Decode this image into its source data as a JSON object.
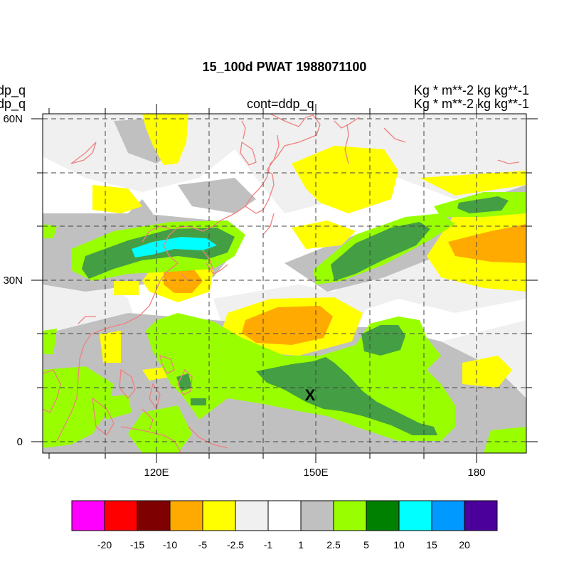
{
  "title": "15_100d PWAT  1988071100",
  "left_labels": [
    "ddp_q",
    "ddp_q"
  ],
  "center_label": "cont=ddp_q",
  "right_labels": [
    "Kg  * m**-2 kg kg**-1",
    "Kg  * m**-2 kg kg**-1"
  ],
  "y_axis_labels": [
    "60N",
    "30N",
    "0"
  ],
  "x_axis_labels": [
    "120E",
    "150E",
    "180"
  ],
  "marker": "X",
  "colorbar": {
    "labels": [
      "-20",
      "-15",
      "-10",
      "-5",
      "-2.5",
      "-1",
      "1",
      "2.5",
      "5",
      "10",
      "15",
      "20"
    ],
    "colors": [
      "#ff00ff",
      "#ff0000",
      "#7f0000",
      "#ffaa00",
      "#ffff00",
      "#f0f0f0",
      "#ffffff",
      "#c0c0c0",
      "#99ff00",
      "#008000",
      "#00ffff",
      "#0099ff",
      "#4b009b"
    ]
  },
  "field_colors": {
    "neg_light": "#f0f0f0",
    "neg_yellow": "#ffff00",
    "neg_orange": "#ffaa00",
    "pos_gray": "#c0c0c0",
    "pos_lime": "#99ff00",
    "pos_green": "#008000",
    "pos_cyan": "#00ffff",
    "coast": "#f08080"
  }
}
